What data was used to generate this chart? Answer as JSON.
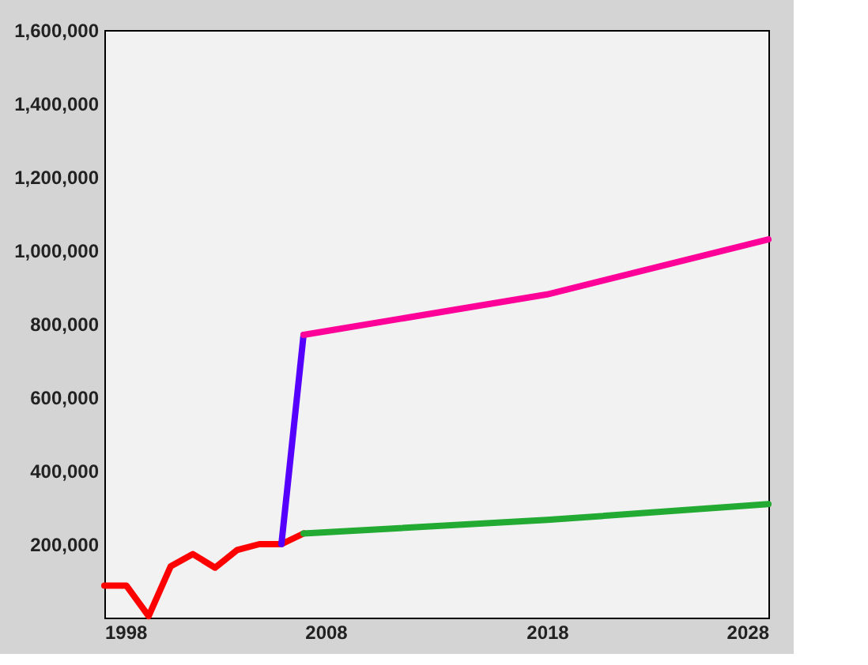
{
  "chart_data": {
    "type": "line",
    "xlim": [
      1998,
      2028
    ],
    "xticks": [
      1998,
      2008,
      2018,
      2028
    ],
    "ylim": [
      0,
      1600000
    ],
    "yticks": [
      {
        "value": 200000,
        "label": "200,000"
      },
      {
        "value": 400000,
        "label": "400,000"
      },
      {
        "value": 600000,
        "label": "600,000"
      },
      {
        "value": 800000,
        "label": "800,000"
      },
      {
        "value": 1000000,
        "label": "1,000,000"
      },
      {
        "value": 1200000,
        "label": "1,200,000"
      },
      {
        "value": 1400000,
        "label": "1,400,000"
      },
      {
        "value": 1600000,
        "label": "1,600,000"
      }
    ],
    "grid": false,
    "marker": "none",
    "line_style": "solid",
    "series": [
      {
        "color": "#ff0000",
        "x": [
          1998,
          1999,
          2000,
          2001,
          2002,
          2003,
          2004,
          2005,
          2006,
          2007
        ],
        "values": [
          87000,
          87000,
          4000,
          140000,
          173000,
          136000,
          184000,
          200000,
          200000,
          229000
        ]
      },
      {
        "color": "#5500ff",
        "x": [
          2006,
          2007
        ],
        "values": [
          200000,
          770000
        ]
      },
      {
        "color": "#ff0099",
        "x": [
          2007,
          2018,
          2028
        ],
        "values": [
          770000,
          880000,
          1030000
        ]
      },
      {
        "color": "#22aa33",
        "x": [
          2007,
          2018,
          2028
        ],
        "values": [
          229000,
          266000,
          309000
        ]
      }
    ]
  }
}
